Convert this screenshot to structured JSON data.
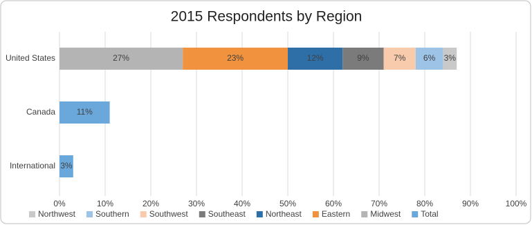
{
  "chart_data": {
    "type": "stacked-bar",
    "orientation": "horizontal",
    "title": "2015 Respondents by Region",
    "categories": [
      "United States",
      "Canada",
      "International"
    ],
    "series": [
      {
        "name": "Northwest",
        "color": "#c9c9c9",
        "values": [
          3,
          null,
          null
        ],
        "value_labels": [
          "3%",
          null,
          null
        ]
      },
      {
        "name": "Southern",
        "color": "#9dc3e6",
        "values": [
          6,
          null,
          null
        ],
        "value_labels": [
          "6%",
          null,
          null
        ]
      },
      {
        "name": "Southwest",
        "color": "#f8cbad",
        "values": [
          7,
          null,
          null
        ],
        "value_labels": [
          "7%",
          null,
          null
        ]
      },
      {
        "name": "Southeast",
        "color": "#7b7b7b",
        "values": [
          9,
          null,
          null
        ],
        "value_labels": [
          "9%",
          null,
          null
        ]
      },
      {
        "name": "Northeast",
        "color": "#2e6fa7",
        "values": [
          12,
          null,
          null
        ],
        "value_labels": [
          "12%",
          null,
          null
        ]
      },
      {
        "name": "Eastern",
        "color": "#f0923e",
        "values": [
          23,
          null,
          null
        ],
        "value_labels": [
          "23%",
          null,
          null
        ]
      },
      {
        "name": "Midwest",
        "color": "#b4b4b4",
        "values": [
          27,
          null,
          null
        ],
        "value_labels": [
          "27%",
          null,
          null
        ]
      },
      {
        "name": "Total",
        "color": "#6aa8dc",
        "values": [
          null,
          11,
          3
        ],
        "value_labels": [
          null,
          "11%",
          "3%"
        ]
      }
    ],
    "xlim": [
      0,
      100
    ],
    "xticks": [
      {
        "value": 0,
        "label": "0%"
      },
      {
        "value": 10,
        "label": "10%"
      },
      {
        "value": 20,
        "label": "20%"
      },
      {
        "value": 30,
        "label": "30%"
      },
      {
        "value": 40,
        "label": "40%"
      },
      {
        "value": 50,
        "label": "50%"
      },
      {
        "value": 60,
        "label": "60%"
      },
      {
        "value": 70,
        "label": "70%"
      },
      {
        "value": 80,
        "label": "80%"
      },
      {
        "value": 90,
        "label": "90%"
      },
      {
        "value": 100,
        "label": "100%"
      }
    ],
    "grid": true,
    "legend": "bottom"
  }
}
